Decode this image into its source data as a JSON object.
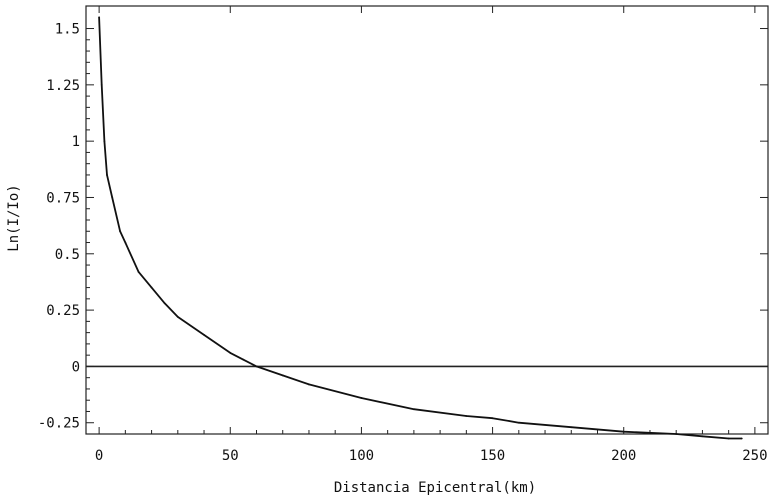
{
  "chart_data": {
    "type": "line",
    "title": "",
    "xlabel": "Distancia Epicentral(km)",
    "ylabel": "Ln(I/Io)",
    "xlim": [
      -5,
      255
    ],
    "ylim": [
      -0.3,
      1.6
    ],
    "xticks": [
      0,
      50,
      100,
      150,
      200,
      250
    ],
    "xtick_labels": [
      "0",
      "50",
      "100",
      "150",
      "200",
      "250"
    ],
    "yticks": [
      -0.25,
      0,
      0.25,
      0.5,
      0.75,
      1,
      1.25,
      1.5
    ],
    "ytick_labels": [
      "-0.25",
      "0",
      "0.25",
      "0.5",
      "0.75",
      "1",
      "1.25",
      "1.5"
    ],
    "grid": false,
    "frame": true,
    "reference_line_y": 0,
    "series": [
      {
        "color": "#111111",
        "x": [
          0,
          1,
          2,
          3,
          5,
          8,
          10,
          15,
          20,
          25,
          30,
          40,
          50,
          55,
          60,
          70,
          80,
          100,
          120,
          140,
          150,
          160,
          180,
          200,
          220,
          230,
          240,
          245
        ],
        "y": [
          1.55,
          1.25,
          1.0,
          0.85,
          0.75,
          0.6,
          0.55,
          0.42,
          0.35,
          0.28,
          0.22,
          0.14,
          0.06,
          0.03,
          0.0,
          -0.04,
          -0.08,
          -0.14,
          -0.19,
          -0.22,
          -0.23,
          -0.25,
          -0.27,
          -0.29,
          -0.3,
          -0.31,
          -0.32,
          -0.32
        ]
      }
    ]
  }
}
